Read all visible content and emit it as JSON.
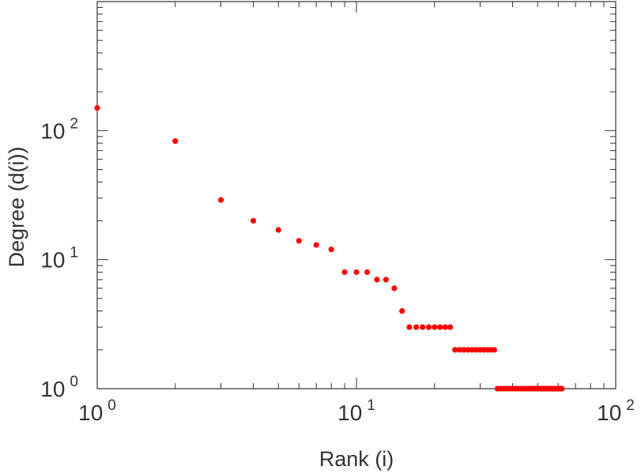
{
  "chart_data": {
    "type": "scatter",
    "xlabel": "Rank (i)",
    "ylabel": "Degree (d(i))",
    "x_scale": "log",
    "y_scale": "log",
    "xlim": [
      1,
      100
    ],
    "ylim": [
      1,
      1000
    ],
    "grid": false,
    "marker_color": "#ff0000",
    "x_ticks": [
      {
        "base": "10",
        "exp": "0",
        "value": 1
      },
      {
        "base": "10",
        "exp": "1",
        "value": 10
      },
      {
        "base": "10",
        "exp": "2",
        "value": 100
      }
    ],
    "y_ticks": [
      {
        "base": "10",
        "exp": "0",
        "value": 1
      },
      {
        "base": "10",
        "exp": "1",
        "value": 10
      },
      {
        "base": "10",
        "exp": "2",
        "value": 100
      }
    ],
    "points": [
      [
        1,
        150
      ],
      [
        2,
        83
      ],
      [
        3,
        29
      ],
      [
        4,
        20
      ],
      [
        5,
        17
      ],
      [
        6,
        14
      ],
      [
        7,
        13
      ],
      [
        8,
        12
      ],
      [
        9,
        8
      ],
      [
        10,
        8
      ],
      [
        11,
        8
      ],
      [
        12,
        7
      ],
      [
        13,
        7
      ],
      [
        14,
        6
      ],
      [
        15,
        4
      ],
      [
        16,
        3
      ],
      [
        17,
        3
      ],
      [
        18,
        3
      ],
      [
        19,
        3
      ],
      [
        20,
        3
      ],
      [
        21,
        3
      ],
      [
        22,
        3
      ],
      [
        23,
        3
      ],
      [
        24,
        2
      ],
      [
        25,
        2
      ],
      [
        26,
        2
      ],
      [
        27,
        2
      ],
      [
        28,
        2
      ],
      [
        29,
        2
      ],
      [
        30,
        2
      ],
      [
        31,
        2
      ],
      [
        32,
        2
      ],
      [
        33,
        2
      ],
      [
        34,
        2
      ],
      [
        35,
        1
      ],
      [
        36,
        1
      ],
      [
        37,
        1
      ],
      [
        38,
        1
      ],
      [
        39,
        1
      ],
      [
        40,
        1
      ],
      [
        41,
        1
      ],
      [
        42,
        1
      ],
      [
        43,
        1
      ],
      [
        44,
        1
      ],
      [
        45,
        1
      ],
      [
        46,
        1
      ],
      [
        47,
        1
      ],
      [
        48,
        1
      ],
      [
        49,
        1
      ],
      [
        50,
        1
      ],
      [
        51,
        1
      ],
      [
        52,
        1
      ],
      [
        53,
        1
      ],
      [
        54,
        1
      ],
      [
        55,
        1
      ],
      [
        56,
        1
      ],
      [
        57,
        1
      ],
      [
        58,
        1
      ],
      [
        59,
        1
      ],
      [
        60,
        1
      ],
      [
        61,
        1
      ],
      [
        62,
        1
      ]
    ]
  }
}
